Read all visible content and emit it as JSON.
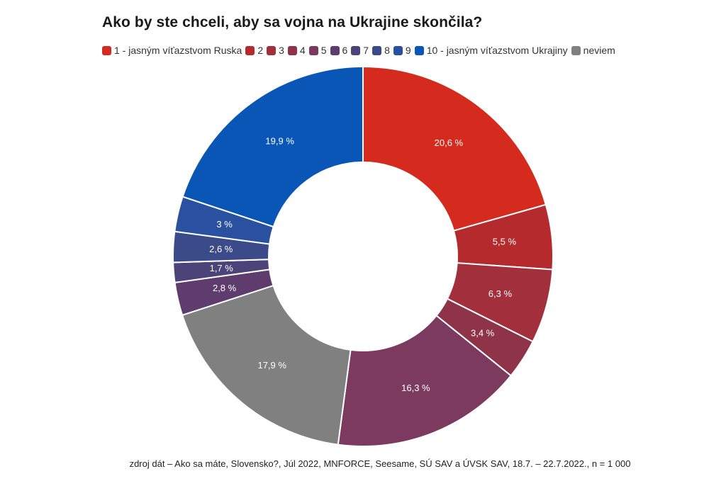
{
  "chart_data": {
    "type": "pie",
    "variant": "donut",
    "title": "Ako by ste chceli, aby sa vojna na Ukrajine skončila?",
    "legend_position": "top",
    "series": [
      {
        "name": "1 - jasným víťazstvom Ruska",
        "value": 20.6,
        "label": "20,6 %",
        "color": "#d52b1e"
      },
      {
        "name": "2",
        "value": 5.5,
        "label": "5,5 %",
        "color": "#b52a2d"
      },
      {
        "name": "3",
        "value": 6.3,
        "label": "6,3 %",
        "color": "#a2303c"
      },
      {
        "name": "4",
        "value": 3.4,
        "label": "3,4 %",
        "color": "#8f3349"
      },
      {
        "name": "5",
        "value": 16.3,
        "label": "16,3 %",
        "color": "#7b3a5e"
      },
      {
        "name": "6",
        "value": 2.8,
        "label": "2,8 %",
        "color": "#5e3d6e"
      },
      {
        "name": "7",
        "value": 1.7,
        "label": "1,7 %",
        "color": "#4c4379"
      },
      {
        "name": "8",
        "value": 2.6,
        "label": "2,6 %",
        "color": "#3b4a88"
      },
      {
        "name": "9",
        "value": 3.0,
        "label": "3 %",
        "color": "#2a50a0"
      },
      {
        "name": "10 - jasným víťazstvom Ukrajiny",
        "value": 19.9,
        "label": "19,9 %",
        "color": "#0a56b7"
      },
      {
        "name": "neviem",
        "value": 17.9,
        "label": "17,9 %",
        "color": "#808080"
      }
    ],
    "draw_order": [
      "1 - jasným víťazstvom Ruska",
      "2",
      "3",
      "4",
      "5",
      "neviem",
      "6",
      "7",
      "8",
      "9",
      "10 - jasným víťazstvom Ukrajiny"
    ]
  },
  "source": "zdroj dát – Ako sa máte, Slovensko?, Júl 2022, MNFORCE, Seesame, SÚ SAV a ÚVSK SAV, 18.7. – 22.7.2022., n = 1 000"
}
